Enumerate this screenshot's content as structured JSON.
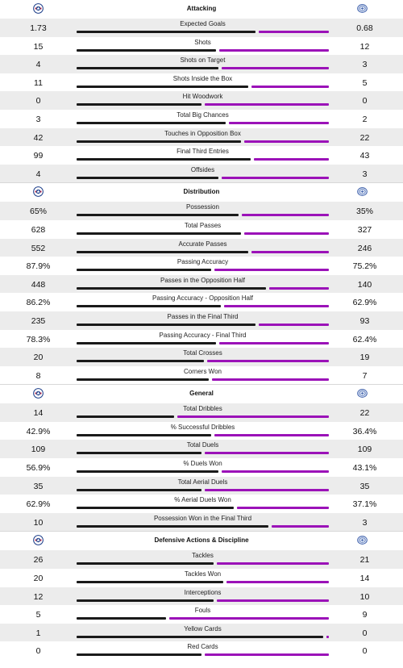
{
  "colors": {
    "home_bar": "#1a1a1a",
    "away_bar": "#9b12b8",
    "row_shade": "#ececec"
  },
  "icons": {
    "home_crest": "home-team-crest-icon",
    "away_crest": "away-team-crest-icon"
  },
  "sections": [
    {
      "title": "Attacking",
      "rows": [
        {
          "label": "Expected Goals",
          "home": "1.73",
          "away": "0.68",
          "home_share": 0.72
        },
        {
          "label": "Shots",
          "home": "15",
          "away": "12",
          "home_share": 0.56
        },
        {
          "label": "Shots on Target",
          "home": "4",
          "away": "3",
          "home_share": 0.57
        },
        {
          "label": "Shots Inside the Box",
          "home": "11",
          "away": "5",
          "home_share": 0.69
        },
        {
          "label": "Hit Woodwork",
          "home": "0",
          "away": "0",
          "home_share": 0.5
        },
        {
          "label": "Total Big Chances",
          "home": "3",
          "away": "2",
          "home_share": 0.6
        },
        {
          "label": "Touches in Opposition Box",
          "home": "42",
          "away": "22",
          "home_share": 0.66
        },
        {
          "label": "Final Third Entries",
          "home": "99",
          "away": "43",
          "home_share": 0.7
        },
        {
          "label": "Offsides",
          "home": "4",
          "away": "3",
          "home_share": 0.57
        }
      ]
    },
    {
      "title": "Distribution",
      "rows": [
        {
          "label": "Possession",
          "home": "65%",
          "away": "35%",
          "home_share": 0.65
        },
        {
          "label": "Total Passes",
          "home": "628",
          "away": "327",
          "home_share": 0.66
        },
        {
          "label": "Accurate Passes",
          "home": "552",
          "away": "246",
          "home_share": 0.69
        },
        {
          "label": "Passing Accuracy",
          "home": "87.9%",
          "away": "75.2%",
          "home_share": 0.54
        },
        {
          "label": "Passes in the Opposition Half",
          "home": "448",
          "away": "140",
          "home_share": 0.76
        },
        {
          "label": "Passing Accuracy - Opposition Half",
          "home": "86.2%",
          "away": "62.9%",
          "home_share": 0.58
        },
        {
          "label": "Passes in the Final Third",
          "home": "235",
          "away": "93",
          "home_share": 0.72
        },
        {
          "label": "Passing Accuracy - Final Third",
          "home": "78.3%",
          "away": "62.4%",
          "home_share": 0.56
        },
        {
          "label": "Total Crosses",
          "home": "20",
          "away": "19",
          "home_share": 0.51
        },
        {
          "label": "Corners Won",
          "home": "8",
          "away": "7",
          "home_share": 0.53
        }
      ]
    },
    {
      "title": "General",
      "rows": [
        {
          "label": "Total Dribbles",
          "home": "14",
          "away": "22",
          "home_share": 0.39
        },
        {
          "label": "% Successful Dribbles",
          "home": "42.9%",
          "away": "36.4%",
          "home_share": 0.54
        },
        {
          "label": "Total Duels",
          "home": "109",
          "away": "109",
          "home_share": 0.5
        },
        {
          "label": "% Duels Won",
          "home": "56.9%",
          "away": "43.1%",
          "home_share": 0.57
        },
        {
          "label": "Total Aerial Duels",
          "home": "35",
          "away": "35",
          "home_share": 0.5
        },
        {
          "label": "% Aerial Duels Won",
          "home": "62.9%",
          "away": "37.1%",
          "home_share": 0.63
        },
        {
          "label": "Possession Won in the Final Third",
          "home": "10",
          "away": "3",
          "home_share": 0.77
        }
      ]
    },
    {
      "title": "Defensive Actions & Discipline",
      "rows": [
        {
          "label": "Tackles",
          "home": "26",
          "away": "21",
          "home_share": 0.55
        },
        {
          "label": "Tackles Won",
          "home": "20",
          "away": "14",
          "home_share": 0.59
        },
        {
          "label": "Interceptions",
          "home": "12",
          "away": "10",
          "home_share": 0.55
        },
        {
          "label": "Fouls",
          "home": "5",
          "away": "9",
          "home_share": 0.36
        },
        {
          "label": "Yellow Cards",
          "home": "1",
          "away": "0",
          "home_share": 0.99
        },
        {
          "label": "Red Cards",
          "home": "0",
          "away": "0",
          "home_share": 0.5
        }
      ]
    }
  ]
}
